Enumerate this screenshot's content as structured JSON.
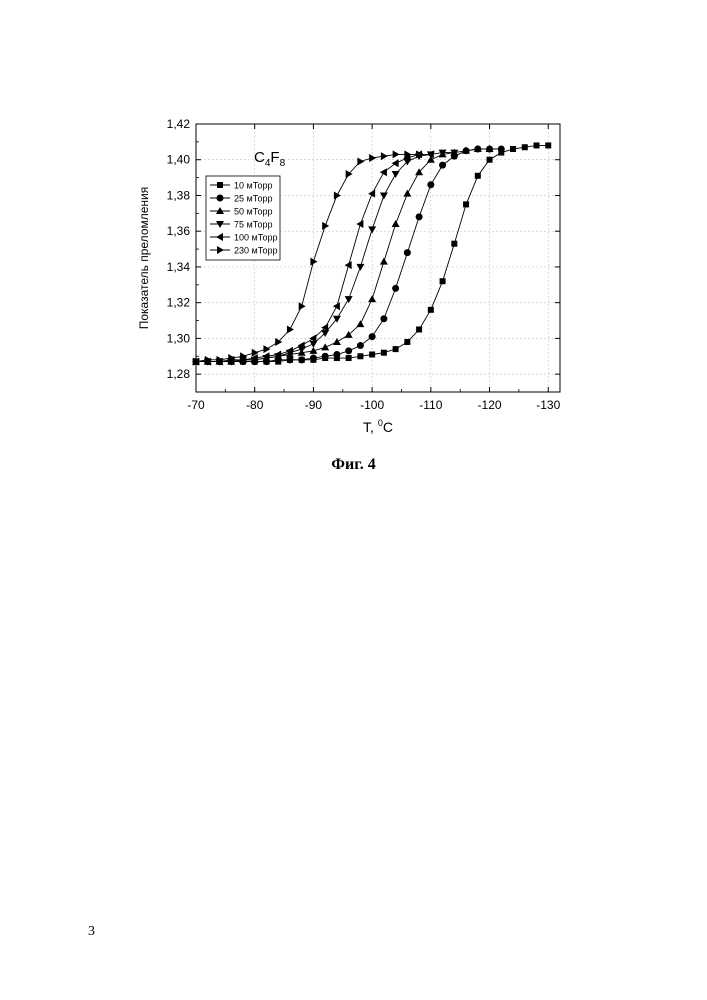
{
  "page": {
    "caption": "Фиг. 4",
    "page_number": "3"
  },
  "chart_data": {
    "type": "line",
    "title": "",
    "annotation": {
      "base": "C",
      "sub1": "4",
      "mid": "F",
      "sub2": "8"
    },
    "xlabel": {
      "main": "T, ",
      "sup": "0",
      "unit": "C"
    },
    "ylabel": "Показатель преломления",
    "xlim": [
      -70,
      -132
    ],
    "ylim": [
      1.27,
      1.42
    ],
    "x_ticks": [
      -70,
      -80,
      -90,
      -100,
      -110,
      -120,
      -130
    ],
    "x_tick_labels": [
      "-70",
      "-80",
      "-90",
      "-100",
      "-110",
      "-120",
      "-130"
    ],
    "y_ticks": [
      1.28,
      1.3,
      1.32,
      1.34,
      1.36,
      1.38,
      1.4,
      1.42
    ],
    "y_tick_labels": [
      "1,28",
      "1,30",
      "1,32",
      "1,34",
      "1,36",
      "1,38",
      "1,40",
      "1,42"
    ],
    "grid": true,
    "legend_position": "left",
    "series": [
      {
        "name": "10 мТорр",
        "marker": "square",
        "x": [
          -70,
          -72,
          -74,
          -76,
          -78,
          -80,
          -82,
          -84,
          -86,
          -88,
          -90,
          -92,
          -94,
          -96,
          -98,
          -100,
          -102,
          -104,
          -106,
          -108,
          -110,
          -112,
          -114,
          -116,
          -118,
          -120,
          -122,
          -124,
          -126,
          -128,
          -130
        ],
        "y": [
          1.287,
          1.287,
          1.287,
          1.287,
          1.287,
          1.287,
          1.287,
          1.287,
          1.288,
          1.288,
          1.288,
          1.289,
          1.289,
          1.289,
          1.29,
          1.291,
          1.292,
          1.294,
          1.298,
          1.305,
          1.316,
          1.332,
          1.353,
          1.375,
          1.391,
          1.4,
          1.404,
          1.406,
          1.407,
          1.408,
          1.408
        ]
      },
      {
        "name": "25 мТорр",
        "marker": "circle",
        "x": [
          -70,
          -72,
          -74,
          -76,
          -78,
          -80,
          -82,
          -84,
          -86,
          -88,
          -90,
          -92,
          -94,
          -96,
          -98,
          -100,
          -102,
          -104,
          -106,
          -108,
          -110,
          -112,
          -114,
          -116,
          -118,
          -120,
          -122
        ],
        "y": [
          1.287,
          1.287,
          1.287,
          1.287,
          1.287,
          1.287,
          1.287,
          1.288,
          1.288,
          1.288,
          1.289,
          1.29,
          1.291,
          1.293,
          1.296,
          1.301,
          1.311,
          1.328,
          1.348,
          1.368,
          1.386,
          1.397,
          1.402,
          1.405,
          1.406,
          1.406,
          1.406
        ]
      },
      {
        "name": "50 мТорр",
        "marker": "triangle-up",
        "x": [
          -70,
          -72,
          -74,
          -76,
          -78,
          -80,
          -82,
          -84,
          -86,
          -88,
          -90,
          -92,
          -94,
          -96,
          -98,
          -100,
          -102,
          -104,
          -106,
          -108,
          -110,
          -112,
          -114,
          -116,
          -118,
          -120
        ],
        "y": [
          1.287,
          1.287,
          1.287,
          1.287,
          1.288,
          1.288,
          1.289,
          1.29,
          1.291,
          1.292,
          1.293,
          1.295,
          1.298,
          1.302,
          1.308,
          1.322,
          1.343,
          1.364,
          1.381,
          1.393,
          1.4,
          1.403,
          1.404,
          1.405,
          1.406,
          1.406
        ]
      },
      {
        "name": "75 мТорр",
        "marker": "triangle-down",
        "x": [
          -70,
          -72,
          -74,
          -76,
          -78,
          -80,
          -82,
          -84,
          -86,
          -88,
          -90,
          -92,
          -94,
          -96,
          -98,
          -100,
          -102,
          -104,
          -106,
          -108,
          -110,
          -112,
          -114
        ],
        "y": [
          1.287,
          1.287,
          1.287,
          1.287,
          1.288,
          1.288,
          1.289,
          1.29,
          1.292,
          1.294,
          1.297,
          1.303,
          1.311,
          1.322,
          1.34,
          1.361,
          1.38,
          1.392,
          1.399,
          1.402,
          1.403,
          1.404,
          1.404
        ]
      },
      {
        "name": "100 мТорр",
        "marker": "triangle-left",
        "x": [
          -70,
          -72,
          -74,
          -76,
          -78,
          -80,
          -82,
          -84,
          -86,
          -88,
          -90,
          -92,
          -94,
          -96,
          -98,
          -100,
          -102,
          -104,
          -106,
          -108,
          -110
        ],
        "y": [
          1.287,
          1.287,
          1.287,
          1.288,
          1.288,
          1.289,
          1.29,
          1.291,
          1.293,
          1.296,
          1.3,
          1.306,
          1.318,
          1.341,
          1.364,
          1.381,
          1.393,
          1.398,
          1.401,
          1.403,
          1.403
        ]
      },
      {
        "name": "230 мТорр",
        "marker": "triangle-right",
        "x": [
          -70,
          -72,
          -74,
          -76,
          -78,
          -80,
          -82,
          -84,
          -86,
          -88,
          -90,
          -92,
          -94,
          -96,
          -98,
          -100,
          -102,
          -104,
          -106,
          -108
        ],
        "y": [
          1.287,
          1.288,
          1.288,
          1.289,
          1.29,
          1.292,
          1.294,
          1.298,
          1.305,
          1.318,
          1.343,
          1.363,
          1.38,
          1.392,
          1.399,
          1.401,
          1.402,
          1.403,
          1.403,
          1.403
        ]
      }
    ]
  }
}
